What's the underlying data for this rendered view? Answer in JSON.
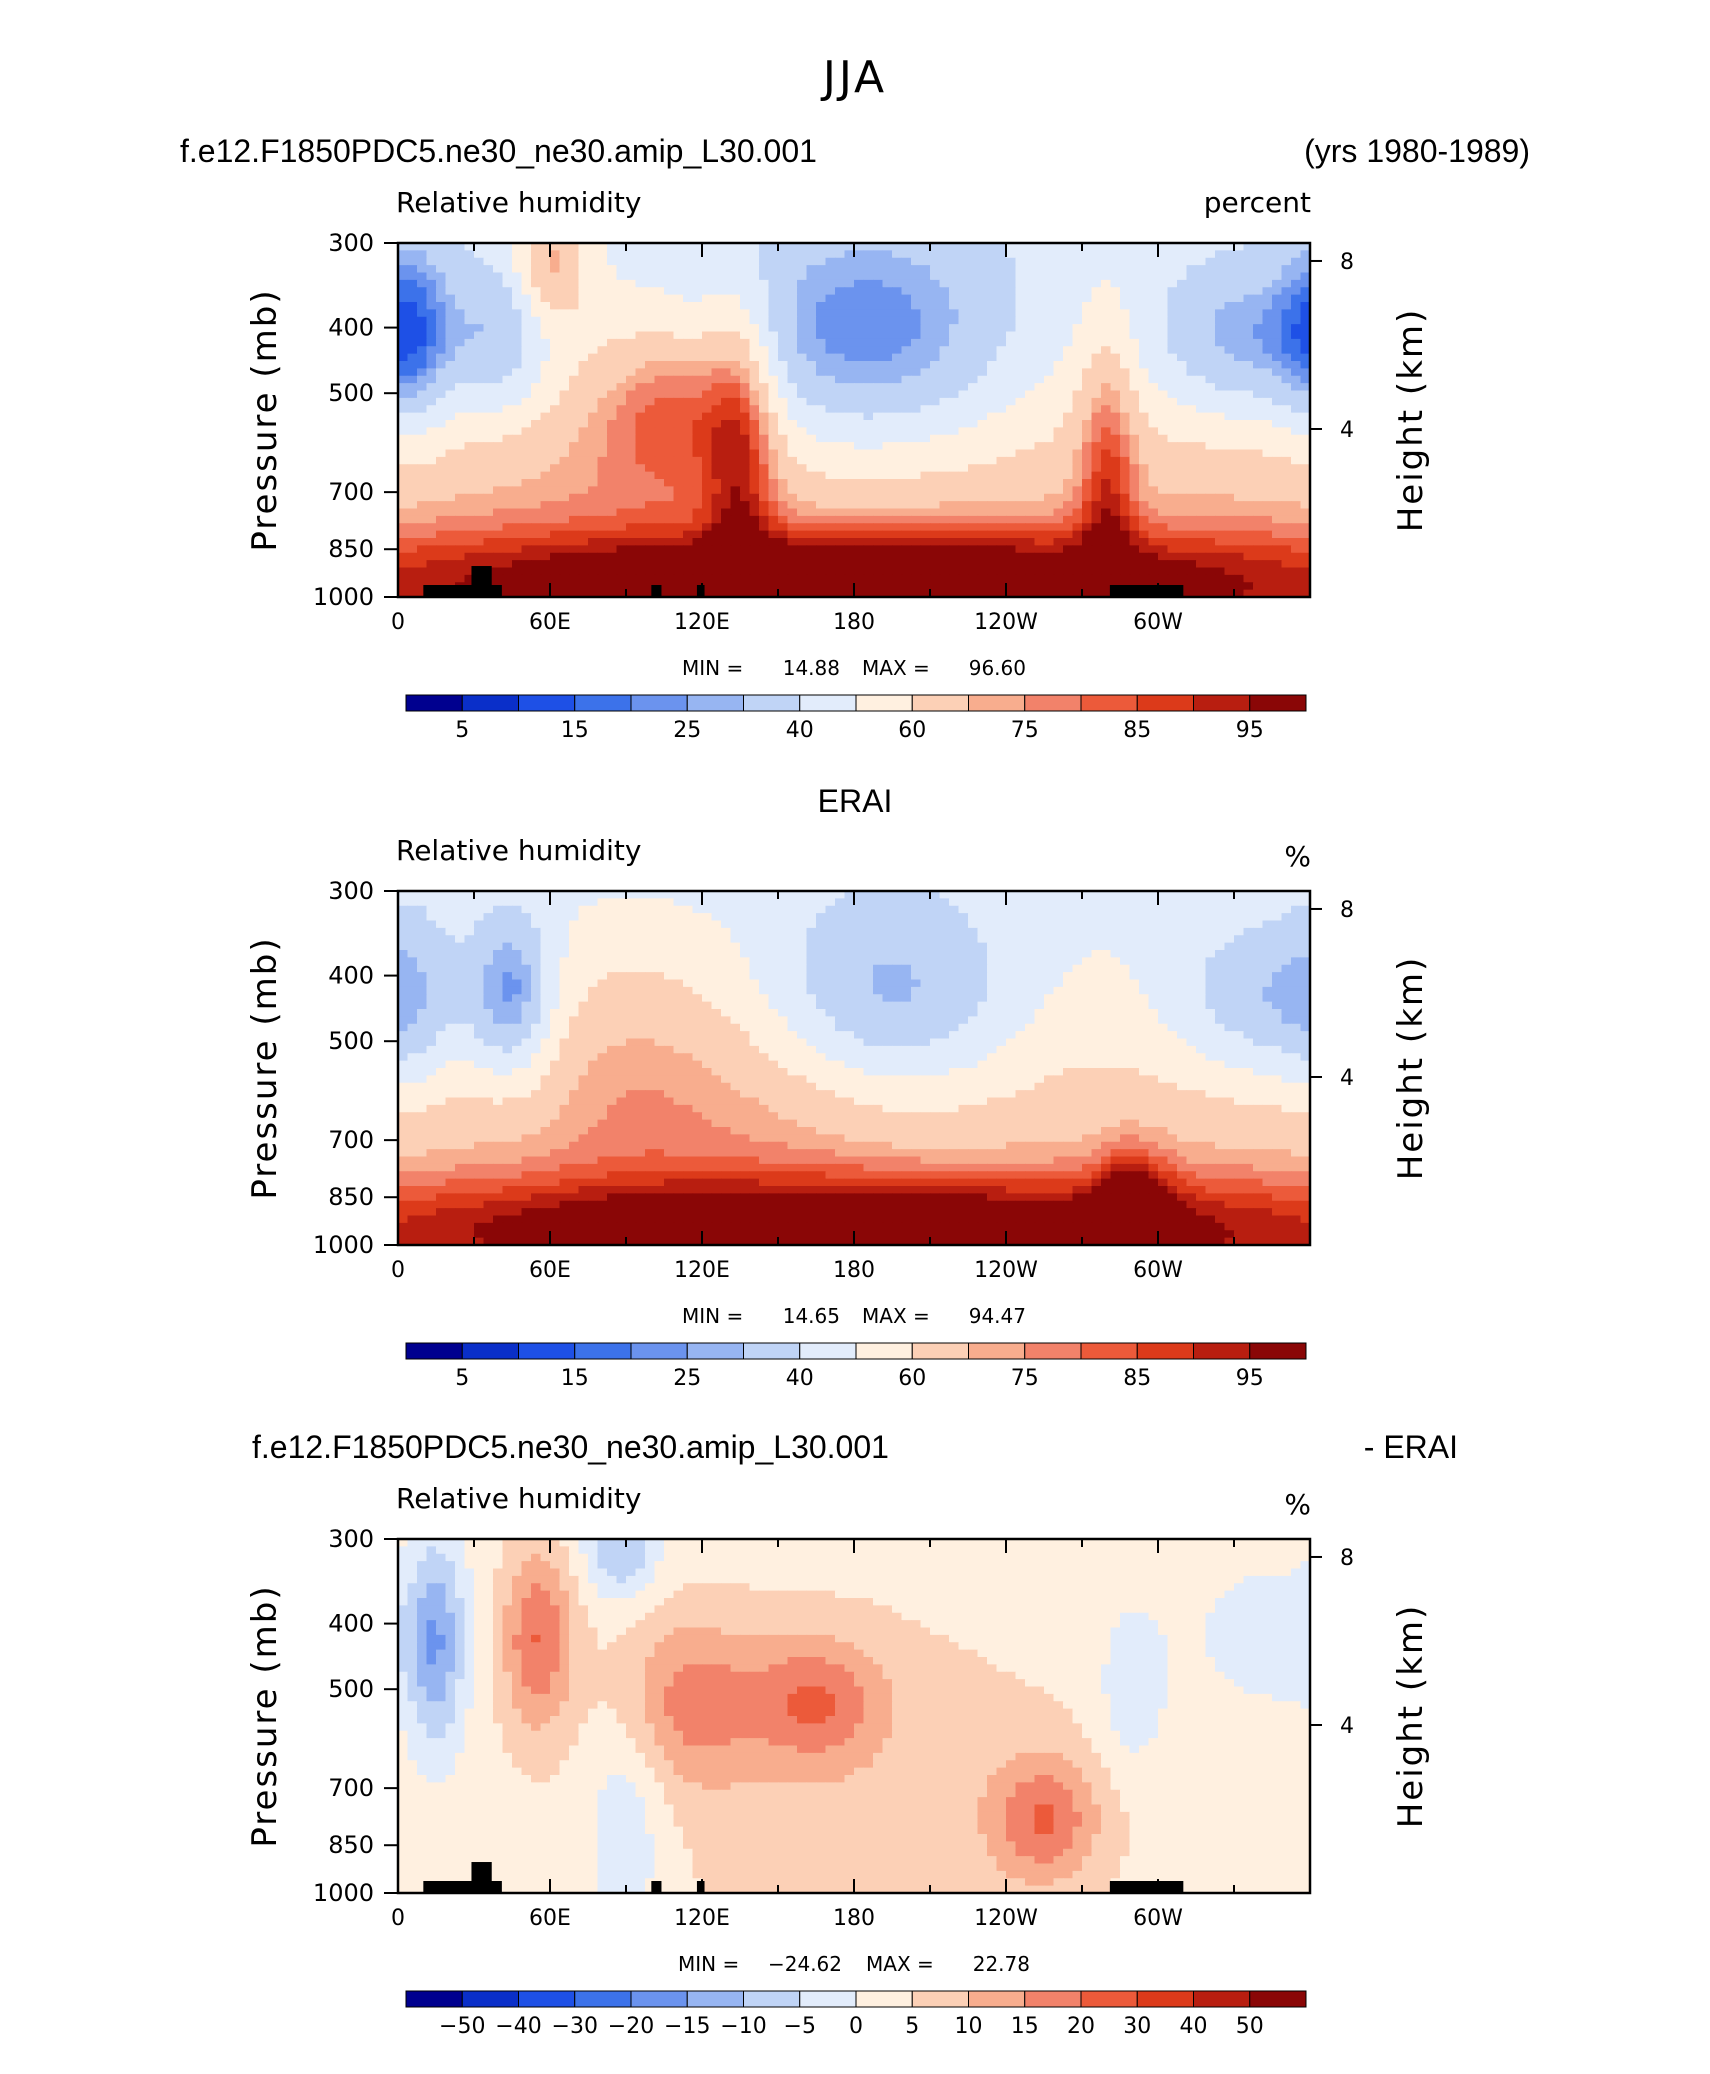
{
  "figure": {
    "season_title": "JJA",
    "case_name": "f.e12.F1850PDC5.ne30_ne30.amip_L30.001",
    "years_label": "(yrs 1980-1989)",
    "obs_title": "ERAI",
    "diff_case": "f.e12.F1850PDC5.ne30_ne30.amip_L30.001",
    "diff_suffix": "- ERAI"
  },
  "chart_data": [
    {
      "type": "heatmap",
      "title": "",
      "variable_label": "Relative humidity",
      "units": "percent",
      "xlabel": "",
      "ylabel": "Pressure (mb)",
      "y2label": "Height (km)",
      "x_ticks": [
        "0",
        "60E",
        "120E",
        "180",
        "120W",
        "60W"
      ],
      "x_tick_lons": [
        0,
        60,
        120,
        180,
        240,
        300
      ],
      "xlim": [
        0,
        360
      ],
      "y_ticks": [
        300,
        400,
        500,
        700,
        850,
        1000
      ],
      "y_tick_labels": [
        "300",
        "400",
        "500",
        "700",
        "850",
        "1000"
      ],
      "ylim": [
        1000,
        300
      ],
      "y2_ticks": [
        "4",
        "8"
      ],
      "y2_tick_values_km": [
        4,
        8
      ],
      "y_scale": "log-pressure",
      "stats": {
        "min_label": "MIN =",
        "min": "14.88",
        "max_label": "MAX =",
        "max": "96.60"
      },
      "colorbar_ticks": [
        "5",
        "15",
        "25",
        "40",
        "60",
        "75",
        "85",
        "95"
      ],
      "colorbar_colors": [
        "#00008f",
        "#0a2fc9",
        "#1e50e6",
        "#3c72ea",
        "#6b93ee",
        "#97b5f2",
        "#c0d4f6",
        "#e2ecfb",
        "#fff0e0",
        "#fcd0b6",
        "#f8ad8e",
        "#f2826a",
        "#ec5a3a",
        "#dc3a1a",
        "#b81e10",
        "#8a0606"
      ],
      "colorbar_bounds": [
        0,
        5,
        10,
        15,
        20,
        25,
        30,
        40,
        50,
        60,
        70,
        75,
        80,
        85,
        90,
        95,
        100
      ],
      "topography_mask": true,
      "field_features": [
        {
          "lon": 185,
          "p": 420,
          "value": 12,
          "sx": 45,
          "sy": 0.28
        },
        {
          "lon": 40,
          "p": 420,
          "value": 24,
          "sx": 15,
          "sy": 0.2
        },
        {
          "lon": 5,
          "p": 410,
          "value": 20,
          "sx": 12,
          "sy": 0.25
        },
        {
          "lon": 335,
          "p": 420,
          "value": 18,
          "sx": 28,
          "sy": 0.2
        },
        {
          "lon": 135,
          "p": 580,
          "value": 80,
          "sx": 10,
          "sy": 0.35
        },
        {
          "lon": 60,
          "p": 320,
          "value": 78,
          "sx": 10,
          "sy": 0.15
        },
        {
          "lon": 110,
          "p": 520,
          "value": 76,
          "sx": 20,
          "sy": 0.2
        },
        {
          "lon": 180,
          "p": 940,
          "value": 88,
          "sx": 140,
          "sy": 0.12
        },
        {
          "lon": 280,
          "p": 650,
          "value": 75,
          "sx": 8,
          "sy": 0.35
        },
        {
          "lon": 80,
          "p": 620,
          "value": 55,
          "sx": 30,
          "sy": 0.2
        }
      ]
    },
    {
      "type": "heatmap",
      "title": "ERAI",
      "variable_label": "Relative humidity",
      "units": "%",
      "xlabel": "",
      "ylabel": "Pressure (mb)",
      "y2label": "Height (km)",
      "x_ticks": [
        "0",
        "60E",
        "120E",
        "180",
        "120W",
        "60W"
      ],
      "x_tick_lons": [
        0,
        60,
        120,
        180,
        240,
        300
      ],
      "xlim": [
        0,
        360
      ],
      "y_ticks": [
        300,
        400,
        500,
        700,
        850,
        1000
      ],
      "y_tick_labels": [
        "300",
        "400",
        "500",
        "700",
        "850",
        "1000"
      ],
      "ylim": [
        1000,
        300
      ],
      "y2_ticks": [
        "4",
        "8"
      ],
      "y2_tick_values_km": [
        4,
        8
      ],
      "y_scale": "log-pressure",
      "stats": {
        "min_label": "MIN =",
        "min": "14.65",
        "max_label": "MAX =",
        "max": "94.47"
      },
      "colorbar_ticks": [
        "5",
        "15",
        "25",
        "40",
        "60",
        "75",
        "85",
        "95"
      ],
      "colorbar_colors": [
        "#00008f",
        "#0a2fc9",
        "#1e50e6",
        "#3c72ea",
        "#6b93ee",
        "#97b5f2",
        "#c0d4f6",
        "#e2ecfb",
        "#fff0e0",
        "#fcd0b6",
        "#f8ad8e",
        "#f2826a",
        "#ec5a3a",
        "#dc3a1a",
        "#b81e10",
        "#8a0606"
      ],
      "colorbar_bounds": [
        0,
        5,
        10,
        15,
        20,
        25,
        30,
        40,
        50,
        60,
        70,
        75,
        80,
        85,
        90,
        95,
        100
      ],
      "topography_mask": false,
      "field_features": [
        {
          "lon": 190,
          "p": 440,
          "value": 14,
          "sx": 38,
          "sy": 0.25
        },
        {
          "lon": 45,
          "p": 430,
          "value": 16,
          "sx": 12,
          "sy": 0.2
        },
        {
          "lon": 345,
          "p": 440,
          "value": 22,
          "sx": 30,
          "sy": 0.2
        },
        {
          "lon": 5,
          "p": 440,
          "value": 38,
          "sx": 12,
          "sy": 0.25
        },
        {
          "lon": 180,
          "p": 940,
          "value": 86,
          "sx": 140,
          "sy": 0.12
        },
        {
          "lon": 290,
          "p": 920,
          "value": 88,
          "sx": 10,
          "sy": 0.15
        },
        {
          "lon": 150,
          "p": 520,
          "value": 62,
          "sx": 40,
          "sy": 0.3
        },
        {
          "lon": 90,
          "p": 560,
          "value": 58,
          "sx": 25,
          "sy": 0.3
        }
      ]
    },
    {
      "type": "heatmap",
      "title": "f.e12.F1850PDC5.ne30_ne30.amip_L30.001 - ERAI",
      "variable_label": "Relative humidity",
      "units": "%",
      "xlabel": "",
      "ylabel": "Pressure (mb)",
      "y2label": "Height (km)",
      "x_ticks": [
        "0",
        "60E",
        "120E",
        "180",
        "120W",
        "60W"
      ],
      "x_tick_lons": [
        0,
        60,
        120,
        180,
        240,
        300
      ],
      "xlim": [
        0,
        360
      ],
      "y_ticks": [
        300,
        400,
        500,
        700,
        850,
        1000
      ],
      "y_tick_labels": [
        "300",
        "400",
        "500",
        "700",
        "850",
        "1000"
      ],
      "ylim": [
        1000,
        300
      ],
      "y2_ticks": [
        "4",
        "8"
      ],
      "y2_tick_values_km": [
        4,
        8
      ],
      "y_scale": "log-pressure",
      "stats": {
        "min_label": "MIN =",
        "min": "−24.62",
        "max_label": "MAX =",
        "max": "22.78"
      },
      "colorbar_ticks": [
        "−50",
        "−40",
        "−30",
        "−20",
        "−15",
        "−10",
        "−5",
        "0",
        "5",
        "10",
        "15",
        "20",
        "30",
        "40",
        "50"
      ],
      "colorbar_colors": [
        "#00008f",
        "#0a2fc9",
        "#1e50e6",
        "#3c72ea",
        "#6b93ee",
        "#97b5f2",
        "#c0d4f6",
        "#e2ecfb",
        "#fff0e0",
        "#fcd0b6",
        "#f8ad8e",
        "#f2826a",
        "#ec5a3a",
        "#dc3a1a",
        "#b81e10",
        "#8a0606"
      ],
      "colorbar_bounds": [
        -60,
        -50,
        -40,
        -30,
        -20,
        -15,
        -10,
        -5,
        0,
        5,
        10,
        15,
        20,
        30,
        40,
        50,
        60
      ],
      "topography_mask": true,
      "field_features": [
        {
          "lon": 15,
          "p": 430,
          "value": -18,
          "sx": 8,
          "sy": 0.25
        },
        {
          "lon": 55,
          "p": 420,
          "value": 19,
          "sx": 10,
          "sy": 0.22
        },
        {
          "lon": 88,
          "p": 310,
          "value": -14,
          "sx": 10,
          "sy": 0.12
        },
        {
          "lon": 115,
          "p": 520,
          "value": 14,
          "sx": 20,
          "sy": 0.2
        },
        {
          "lon": 165,
          "p": 520,
          "value": 16,
          "sx": 18,
          "sy": 0.15
        },
        {
          "lon": 255,
          "p": 780,
          "value": 17,
          "sx": 15,
          "sy": 0.15
        },
        {
          "lon": 90,
          "p": 780,
          "value": -9,
          "sx": 12,
          "sy": 0.3
        },
        {
          "lon": 290,
          "p": 500,
          "value": -8,
          "sx": 10,
          "sy": 0.2
        },
        {
          "lon": 345,
          "p": 420,
          "value": -7,
          "sx": 20,
          "sy": 0.15
        },
        {
          "lon": 180,
          "p": 700,
          "value": 6,
          "sx": 80,
          "sy": 0.5
        }
      ]
    }
  ]
}
